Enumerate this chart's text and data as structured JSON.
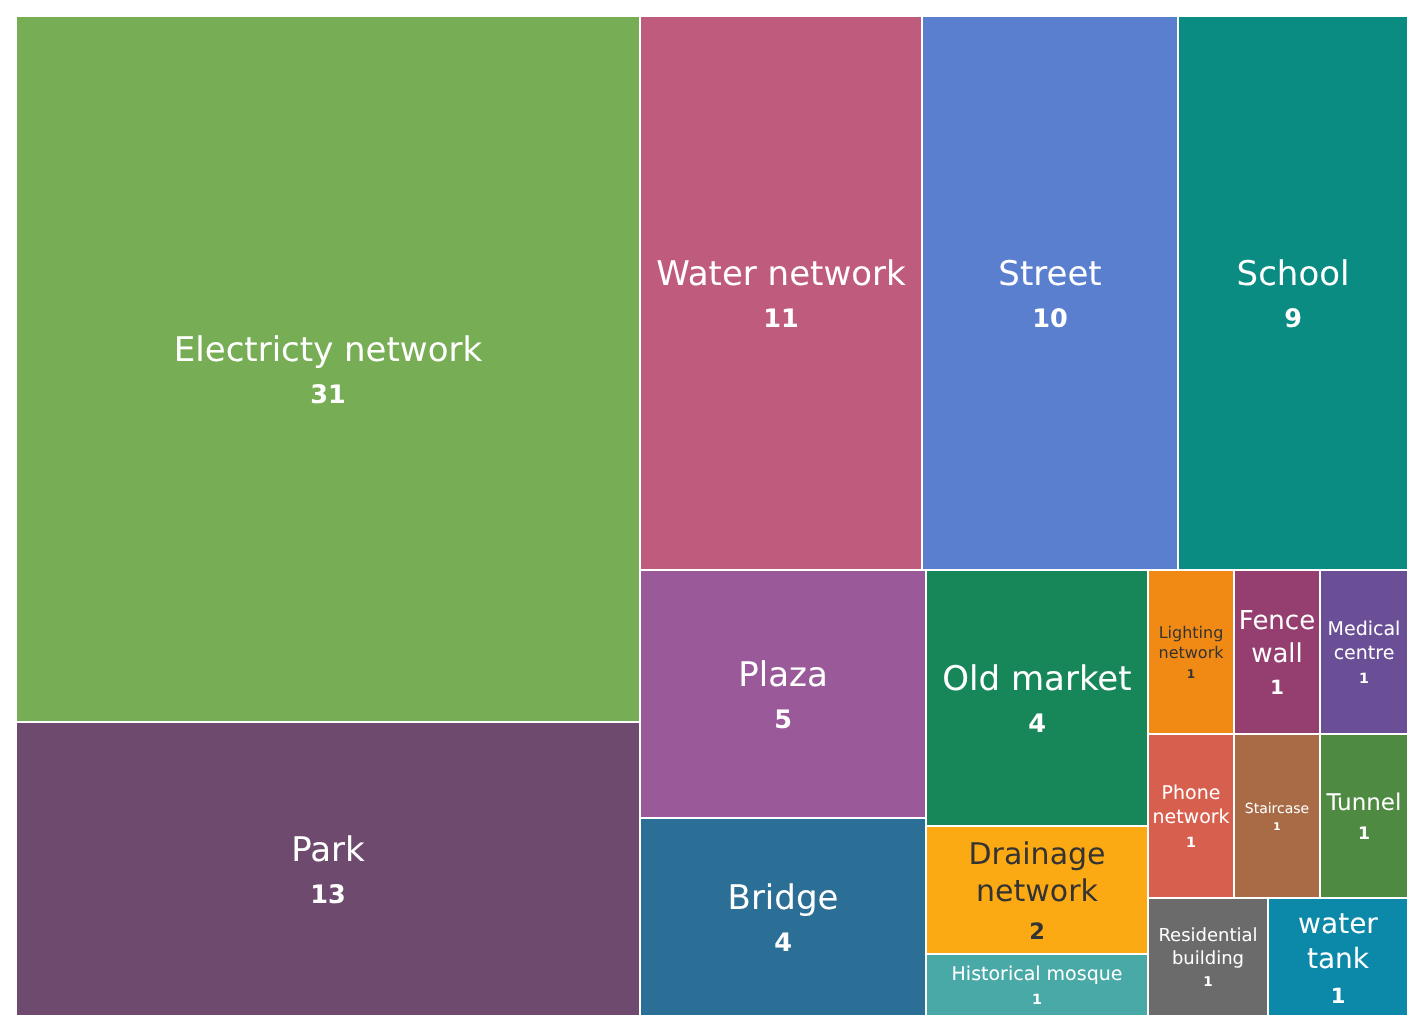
{
  "chart_data": {
    "type": "other",
    "data_labels": true,
    "categories": [
      "Electricty network",
      "Park",
      "Water network",
      "Street",
      "School",
      "Plaza",
      "Bridge",
      "Old market",
      "Drainage network",
      "Historical mosque",
      "Lighting network",
      "Fence wall",
      "Medical centre",
      "Phone network",
      "Staircase",
      "Tunnel",
      "Residential building",
      "water tank"
    ],
    "values": [
      31,
      13,
      11,
      10,
      9,
      5,
      4,
      4,
      2,
      1,
      1,
      1,
      1,
      1,
      1,
      1,
      1,
      1
    ],
    "colors": [
      "#77ad55",
      "#6f4a6f",
      "#bf5b7c",
      "#5b7fcf",
      "#0a8c82",
      "#9a5a9a",
      "#2c6f96",
      "#17875a",
      "#fbaa13",
      "#48a9a6",
      "#f08a14",
      "#943f6f",
      "#6a4f96",
      "#d65f4e",
      "#a86b45",
      "#4f8a43",
      "#6b6b6b",
      "#0c88a8"
    ]
  }
}
